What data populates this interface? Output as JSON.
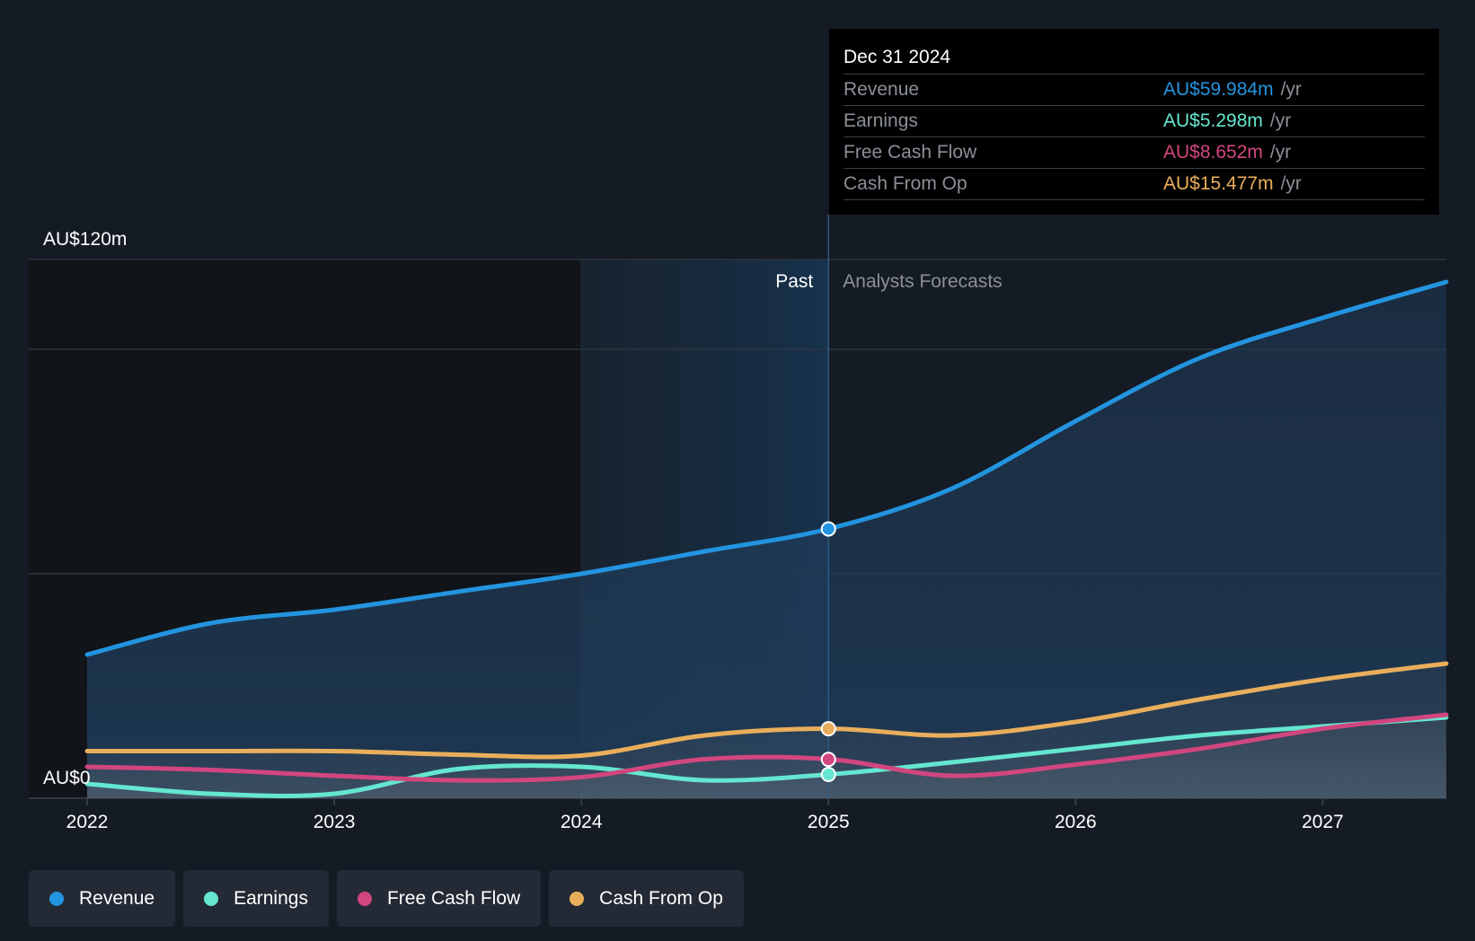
{
  "tooltip": {
    "date": "Dec 31 2024",
    "unit": "/yr",
    "rows": [
      {
        "label": "Revenue",
        "value": "AU$59.984m"
      },
      {
        "label": "Earnings",
        "value": "AU$5.298m"
      },
      {
        "label": "Free Cash Flow",
        "value": "AU$8.652m"
      },
      {
        "label": "Cash From Op",
        "value": "AU$15.477m"
      }
    ]
  },
  "labels": {
    "past": "Past",
    "forecast": "Analysts Forecasts"
  },
  "colors": {
    "background": "#151b24",
    "revenue": "#2394df",
    "earnings": "#65e6d0",
    "free_cash_flow": "#d2467f",
    "cash_from_op": "#e9ae5b",
    "grid": "#2e3540",
    "text": "#ffffff",
    "muted": "#8a8f98"
  },
  "legend": [
    {
      "label": "Revenue",
      "color_key": "revenue"
    },
    {
      "label": "Earnings",
      "color_key": "earnings"
    },
    {
      "label": "Free Cash Flow",
      "color_key": "free_cash_flow"
    },
    {
      "label": "Cash From Op",
      "color_key": "cash_from_op"
    }
  ],
  "chart_data": {
    "type": "line",
    "title": "",
    "xlabel": "",
    "ylabel": "",
    "ylim": [
      0,
      120
    ],
    "xlim": [
      2022.0,
      2027.5
    ],
    "y_tick_labels": [
      {
        "value": 120,
        "label": "AU$120m"
      },
      {
        "value": 0,
        "label": "AU$0"
      }
    ],
    "gridlines": [
      0,
      50,
      100,
      120
    ],
    "x_ticks": [
      2022,
      2023,
      2024,
      2025,
      2026,
      2027
    ],
    "highlight_range": [
      2024.0,
      2025.0
    ],
    "divider_x": 2025.0,
    "markers_x": 2025.0,
    "series": [
      {
        "name": "Revenue",
        "color_key": "revenue",
        "points": [
          [
            2022.0,
            32
          ],
          [
            2022.5,
            39
          ],
          [
            2023.0,
            42
          ],
          [
            2023.5,
            46
          ],
          [
            2024.0,
            50
          ],
          [
            2024.5,
            55
          ],
          [
            2025.0,
            60
          ],
          [
            2025.5,
            69
          ],
          [
            2026.0,
            84
          ],
          [
            2026.5,
            98
          ],
          [
            2027.0,
            107
          ],
          [
            2027.5,
            115
          ]
        ]
      },
      {
        "name": "Earnings",
        "color_key": "earnings",
        "points": [
          [
            2022.0,
            3.2
          ],
          [
            2022.5,
            1.0
          ],
          [
            2023.0,
            1.0
          ],
          [
            2023.5,
            6.5
          ],
          [
            2024.0,
            7.0
          ],
          [
            2024.5,
            4.0
          ],
          [
            2025.0,
            5.3
          ],
          [
            2025.5,
            8.0
          ],
          [
            2026.0,
            11
          ],
          [
            2026.5,
            14
          ],
          [
            2027.0,
            16
          ],
          [
            2027.5,
            18
          ]
        ]
      },
      {
        "name": "Free Cash Flow",
        "color_key": "free_cash_flow",
        "points": [
          [
            2022.0,
            7
          ],
          [
            2022.5,
            6.3
          ],
          [
            2023.0,
            5
          ],
          [
            2023.5,
            4
          ],
          [
            2024.0,
            4.7
          ],
          [
            2024.5,
            8.7
          ],
          [
            2025.0,
            8.7
          ],
          [
            2025.5,
            5
          ],
          [
            2026.0,
            7.5
          ],
          [
            2026.5,
            11
          ],
          [
            2027.0,
            15.5
          ],
          [
            2027.5,
            18.6
          ]
        ]
      },
      {
        "name": "Cash From Op",
        "color_key": "cash_from_op",
        "points": [
          [
            2022.0,
            10.5
          ],
          [
            2022.5,
            10.5
          ],
          [
            2023.0,
            10.5
          ],
          [
            2023.5,
            9.7
          ],
          [
            2024.0,
            9.5
          ],
          [
            2024.5,
            14
          ],
          [
            2025.0,
            15.5
          ],
          [
            2025.5,
            14
          ],
          [
            2026.0,
            17
          ],
          [
            2026.5,
            22
          ],
          [
            2027.0,
            26.5
          ],
          [
            2027.5,
            30
          ]
        ]
      }
    ],
    "tooltip_values": {
      "Revenue": 59.984,
      "Earnings": 5.298,
      "Free Cash Flow": 8.652,
      "Cash From Op": 15.477
    }
  }
}
